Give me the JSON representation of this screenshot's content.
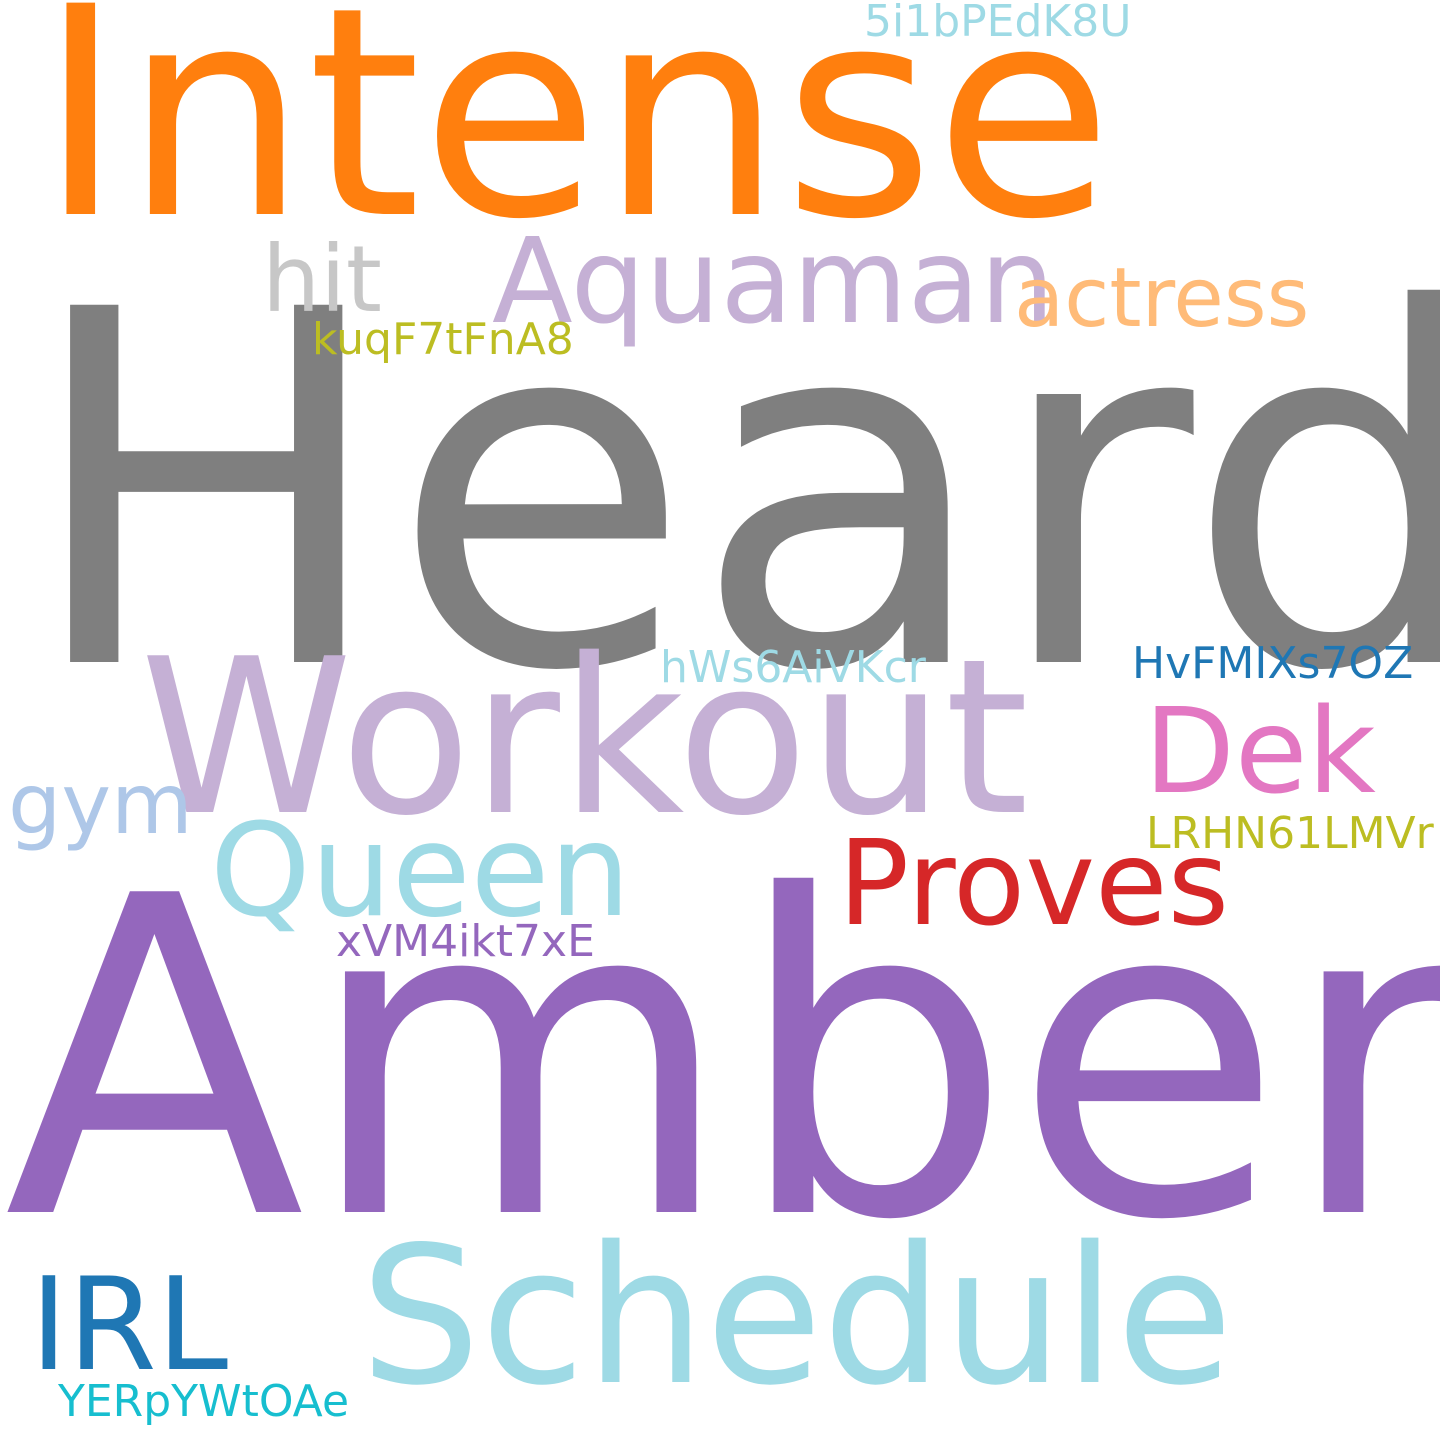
{
  "words": [
    {
      "text": "Intense",
      "color": "#ff7f0e"
    },
    {
      "text": "Heard",
      "color": "#7f7f7f"
    },
    {
      "text": "Amber",
      "color": "#9467bd"
    },
    {
      "text": "Workout",
      "color": "#c5b0d5"
    },
    {
      "text": "Schedule",
      "color": "#9edae5"
    },
    {
      "text": "Aquaman",
      "color": "#c5b0d5"
    },
    {
      "text": "actress",
      "color": "#ffbb78"
    },
    {
      "text": "hit",
      "color": "#c7c7c7"
    },
    {
      "text": "kuqF7tFnA8",
      "color": "#bcbd22"
    },
    {
      "text": "5i1bPEdK8U",
      "color": "#9edae5"
    },
    {
      "text": "hWs6AiVKcr",
      "color": "#9edae5"
    },
    {
      "text": "HvFMIXs7OZ",
      "color": "#1f77b4"
    },
    {
      "text": "Dek",
      "color": "#e377c2"
    },
    {
      "text": "gym",
      "color": "#aec7e8"
    },
    {
      "text": "Queen",
      "color": "#9edae5"
    },
    {
      "text": "Proves",
      "color": "#d62728"
    },
    {
      "text": "LRHN61LMVr",
      "color": "#bcbd22"
    },
    {
      "text": "xVM4ikt7xE",
      "color": "#9467bd"
    },
    {
      "text": "IRL",
      "color": "#1f77b4"
    },
    {
      "text": "YERpYWtOAe",
      "color": "#17becf"
    }
  ]
}
